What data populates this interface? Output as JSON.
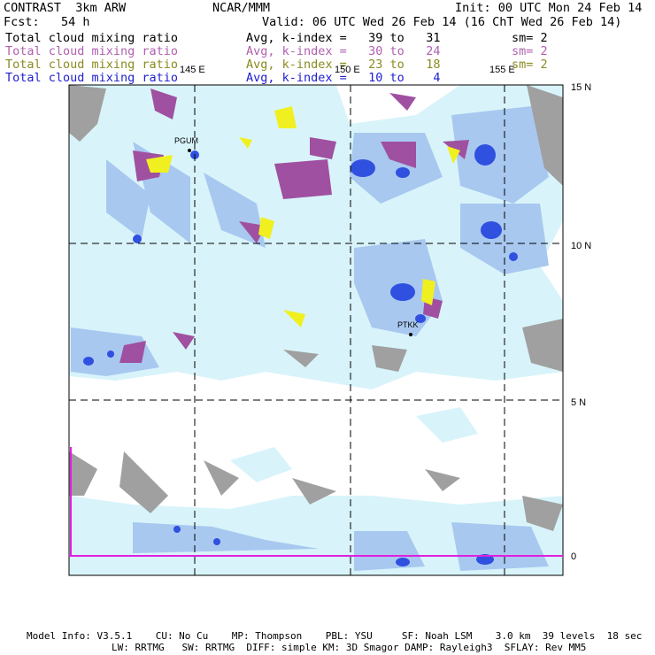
{
  "header": {
    "model": "CONTRAST  3km ARW",
    "org": "NCAR/MMM",
    "init": "Init: 00 UTC Mon 24 Feb 14",
    "fcst": "Fcst:   54 h",
    "valid": "Valid: 06 UTC Wed 26 Feb 14 (16 ChT Wed 26 Feb 14)"
  },
  "legend": [
    {
      "field": "Total cloud mixing ratio",
      "range": "Avg, k-index =   39 to   31",
      "sm": "sm= 2",
      "color": "#000000"
    },
    {
      "field": "Total cloud mixing ratio",
      "range": "Avg, k-index =   30 to   24",
      "sm": "sm= 2",
      "color": "#b060b0"
    },
    {
      "field": "Total cloud mixing ratio",
      "range": "Avg, k-index =   23 to   18",
      "sm": "sm= 2",
      "color": "#8a8a20"
    },
    {
      "field": "Total cloud mixing ratio",
      "range": "Avg, k-index =   10 to    4",
      "sm": "",
      "color": "#2020d0"
    }
  ],
  "lon_labels": [
    "145 E",
    "150 E",
    "155 E"
  ],
  "lat_labels": [
    "15 N",
    "10 N",
    "5 N",
    "0"
  ],
  "stations": [
    "PGUM",
    "PTKK"
  ],
  "colors": {
    "gray": "#a0a0a0",
    "purple": "#a050a0",
    "yellow": "#f0f020",
    "cloud_light": "#d8f4fa",
    "cloud_blue": "#a8c8f0",
    "cloud_dark": "#3050e0",
    "magenta": "#e020e0"
  },
  "footer": {
    "line1": "Model Info: V3.5.1    CU: No Cu    MP: Thompson    PBL: YSU     SF: Noah LSM    3.0 km  39 levels  18 sec",
    "line2": "LW: RRTMG   SW: RRTMG  DIFF: simple KM: 3D Smagor DAMP: Rayleigh3  SFLAY: Rev MM5"
  }
}
